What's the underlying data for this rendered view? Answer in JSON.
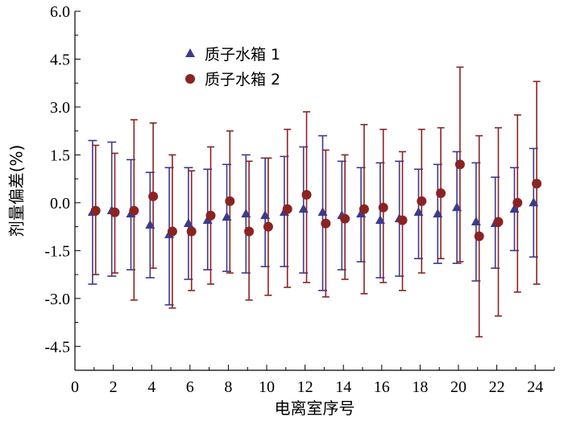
{
  "chart_data": {
    "type": "scatter",
    "xlabel": "电离室序号",
    "ylabel": "剂量偏差(%)",
    "xlim": [
      0,
      25
    ],
    "ylim": [
      -5.25,
      6.0
    ],
    "xticks": [
      0,
      2,
      4,
      6,
      8,
      10,
      12,
      14,
      16,
      18,
      20,
      22,
      24
    ],
    "xtick_labels": [
      "0",
      "2",
      "4",
      "6",
      "8",
      "10",
      "12",
      "14",
      "16",
      "18",
      "20",
      "22",
      "24"
    ],
    "yticks": [
      -4.5,
      -3.0,
      -1.5,
      0.0,
      1.5,
      3.0,
      4.5,
      6.0
    ],
    "ytick_labels": [
      "-4.5",
      "-3.0",
      "-1.5",
      "0.0",
      "1.5",
      "3.0",
      "4.5",
      "6.0"
    ],
    "grid": false,
    "legend_position": "top-left",
    "colors": {
      "series1": "#3d3a8c",
      "series2": "#8b2323",
      "axis": "#000000"
    },
    "x": [
      1,
      2,
      3,
      4,
      5,
      6,
      7,
      8,
      9,
      10,
      11,
      12,
      13,
      14,
      15,
      16,
      17,
      18,
      19,
      20,
      21,
      22,
      23,
      24
    ],
    "series": [
      {
        "name": "质子水箱 1",
        "marker": "triangle",
        "values": [
          -0.3,
          -0.25,
          -0.35,
          -0.7,
          -1.0,
          -0.65,
          -0.55,
          -0.45,
          -0.35,
          -0.4,
          -0.3,
          -0.2,
          -0.3,
          -0.4,
          -0.35,
          -0.55,
          -0.5,
          -0.3,
          -0.35,
          -0.15,
          -0.6,
          -0.65,
          -0.2,
          0.0
        ],
        "err_low": [
          -2.55,
          -2.3,
          -2.1,
          -2.35,
          -3.2,
          -2.4,
          -2.1,
          -2.15,
          -2.2,
          -2.0,
          -2.0,
          -2.2,
          -2.75,
          -2.1,
          -1.85,
          -2.35,
          -2.3,
          -1.75,
          -1.9,
          -1.9,
          -2.45,
          -2.05,
          -1.5,
          -1.7
        ],
        "err_high": [
          1.95,
          1.9,
          1.35,
          0.95,
          1.1,
          1.1,
          1.05,
          1.2,
          1.5,
          1.4,
          1.45,
          1.75,
          2.1,
          1.3,
          1.1,
          1.25,
          1.3,
          1.05,
          1.2,
          1.6,
          1.25,
          0.8,
          1.1,
          1.7
        ]
      },
      {
        "name": "质子水箱 2",
        "marker": "circle",
        "values": [
          -0.25,
          -0.3,
          -0.25,
          0.2,
          -0.9,
          -0.9,
          -0.4,
          0.05,
          -0.9,
          -0.75,
          -0.2,
          0.25,
          -0.65,
          -0.5,
          -0.2,
          -0.15,
          -0.55,
          0.05,
          0.3,
          1.2,
          -1.05,
          -0.6,
          0.0,
          0.6
        ],
        "err_low": [
          -2.25,
          -2.2,
          -3.05,
          -2.05,
          -3.3,
          -2.75,
          -2.55,
          -2.2,
          -3.05,
          -2.9,
          -2.65,
          -2.5,
          -2.95,
          -2.4,
          -2.85,
          -2.5,
          -2.75,
          -2.2,
          -1.75,
          -1.85,
          -4.2,
          -3.55,
          -2.8,
          -2.55
        ],
        "err_high": [
          1.8,
          1.55,
          2.6,
          2.5,
          1.5,
          1.0,
          1.75,
          2.25,
          1.3,
          1.4,
          2.3,
          2.85,
          1.65,
          1.5,
          2.45,
          2.3,
          1.6,
          2.3,
          2.35,
          4.25,
          2.1,
          2.35,
          2.75,
          3.8
        ]
      }
    ]
  }
}
